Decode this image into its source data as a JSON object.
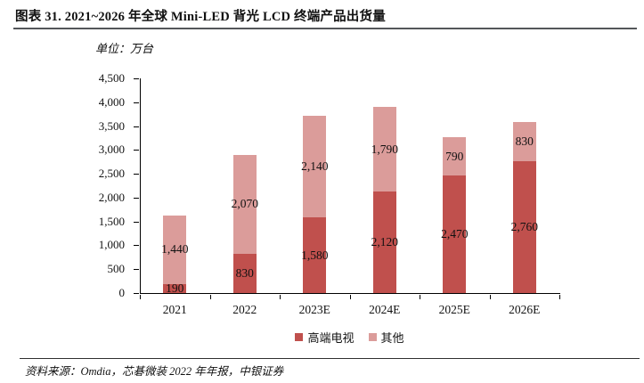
{
  "page": {
    "title": "图表 31. 2021~2026 年全球 Mini-LED 背光 LCD 终端产品出货量",
    "unit_label": "单位：万台",
    "source_label": "资料来源：Omdia，芯碁微装 2022 年年报，中银证券"
  },
  "colors": {
    "series_dark": "#C0504D",
    "series_light": "#DB9C9A",
    "axis": "#000000",
    "title_rule": "#54565A",
    "source_rule": "#2F2F2F",
    "text": "#111111"
  },
  "chart_data": {
    "type": "bar",
    "stacked": true,
    "title": "2021~2026 年全球 Mini-LED 背光 LCD 终端产品出货量",
    "ylabel": "单位：万台",
    "categories": [
      "2021",
      "2022",
      "2023E",
      "2024E",
      "2025E",
      "2026E"
    ],
    "series": [
      {
        "name": "高端电视",
        "color_key": "series_dark",
        "values": [
          190,
          830,
          1580,
          2120,
          2470,
          2760
        ]
      },
      {
        "name": "其他",
        "color_key": "series_light",
        "values": [
          1440,
          2070,
          2140,
          1790,
          790,
          830
        ]
      }
    ],
    "totals": [
      1630,
      2900,
      3720,
      3910,
      3260,
      3590
    ],
    "ylim": [
      0,
      4500
    ],
    "ytick_step": 500,
    "grid": false,
    "legend_position": "bottom",
    "data_labels": true
  }
}
